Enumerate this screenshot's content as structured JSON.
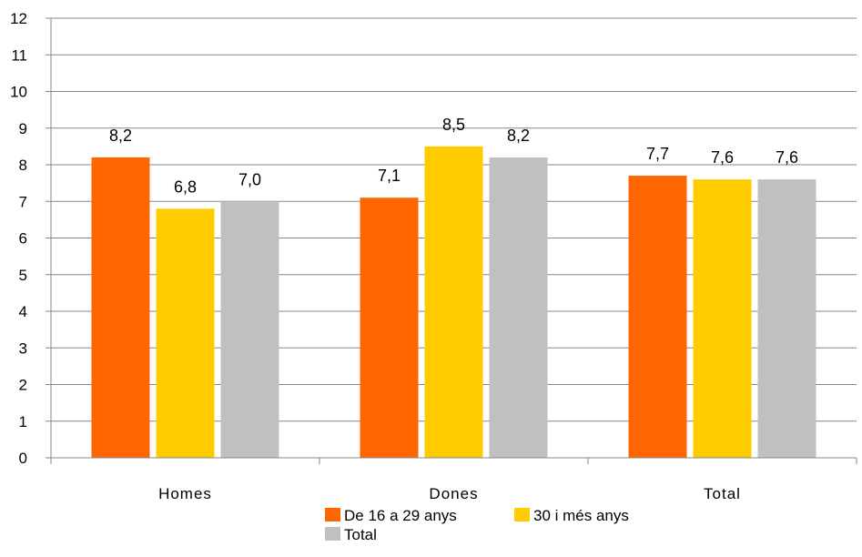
{
  "chart_data": {
    "type": "bar",
    "title": "",
    "xlabel": "",
    "ylabel": "",
    "categories": [
      "Homes",
      "Dones",
      "Total"
    ],
    "series": [
      {
        "name": "De 16 a 29 anys",
        "values": [
          8.2,
          7.1,
          7.7
        ],
        "labels": [
          "8,2",
          "7,1",
          "7,7"
        ],
        "color": "#FF6600"
      },
      {
        "name": "30 i més anys",
        "values": [
          6.8,
          8.5,
          7.6
        ],
        "labels": [
          "6,8",
          "8,5",
          "7,6"
        ],
        "color": "#FFCC00"
      },
      {
        "name": "Total",
        "values": [
          7.0,
          8.2,
          7.6
        ],
        "labels": [
          "7,0",
          "8,2",
          "7,6"
        ],
        "color": "#C0C0C0"
      }
    ],
    "ylim": [
      0,
      12
    ],
    "yticks": [
      "0",
      "1",
      "2",
      "3",
      "4",
      "5",
      "6",
      "7",
      "8",
      "9",
      "10",
      "11",
      "12"
    ],
    "grid": true,
    "gridColor": "#878787",
    "legend_position": "bottom"
  }
}
